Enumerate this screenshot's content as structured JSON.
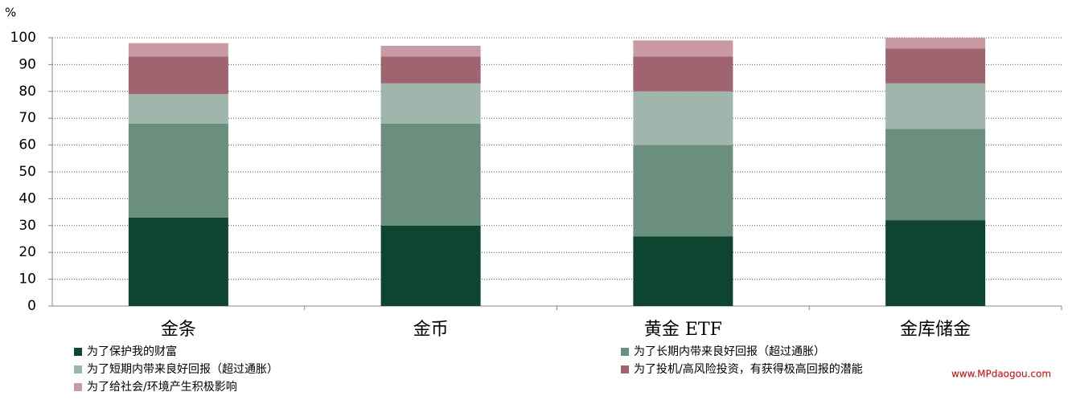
{
  "chart_data": {
    "type": "stacked_bar",
    "y_unit": "%",
    "categories": [
      "金条",
      "金币",
      "黄金 ETF",
      "金库储金"
    ],
    "series": [
      {
        "name": "为了保护我的财富",
        "color": "#0d4531",
        "values": [
          33,
          30,
          26,
          32
        ]
      },
      {
        "name": "为了长期内带来良好回报（超过通胀）",
        "color": "#6b8f7f",
        "values": [
          35,
          38,
          34,
          34
        ]
      },
      {
        "name": "为了短期内带来良好回报（超过通胀）",
        "color": "#a0b5ab",
        "values": [
          11,
          15,
          20,
          17
        ]
      },
      {
        "name": "为了投机/高风险投资，有获得极高回报的潜能",
        "color": "#a06470",
        "values": [
          14,
          10,
          13,
          13
        ]
      },
      {
        "name": "为了给社会/环境产生积极影响",
        "color": "#c99aa3",
        "values": [
          5,
          4,
          6,
          4
        ]
      }
    ],
    "ylim": [
      0,
      100
    ],
    "yticks": [
      0,
      10,
      20,
      30,
      40,
      50,
      60,
      70,
      80,
      90,
      100
    ],
    "grid": true,
    "watermark": "www.MPdaogou.com"
  }
}
